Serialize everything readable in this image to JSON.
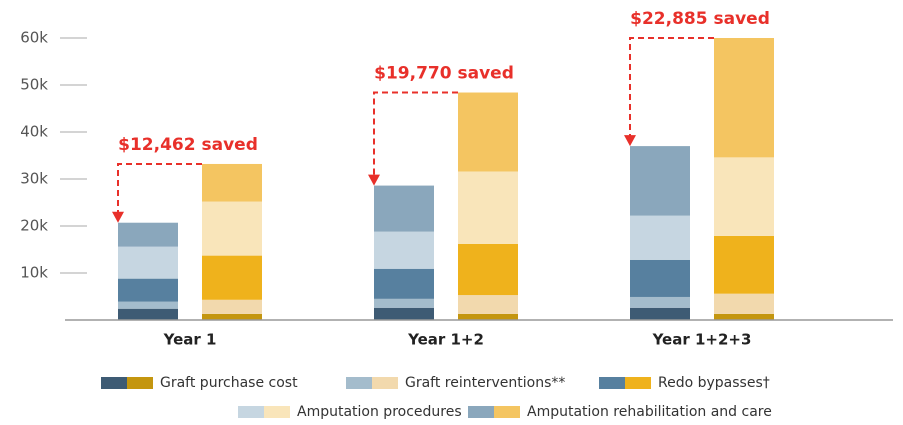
{
  "chart_data": {
    "type": "paired-stacked-bar",
    "categories": [
      "Year 1",
      "Year 1+2",
      "Year 1+2+3"
    ],
    "series": [
      {
        "name": "Graft purchase cost",
        "color": [
          "#3e5b74",
          "#c4960f"
        ],
        "values": [
          [
            2400,
            1300
          ],
          [
            2600,
            1300
          ],
          [
            2600,
            1300
          ]
        ]
      },
      {
        "name": "Graft reinterventions**",
        "color": [
          "#a4bccc",
          "#f2d9ad"
        ],
        "values": [
          [
            1500,
            3000
          ],
          [
            1900,
            4000
          ],
          [
            2300,
            4300
          ]
        ]
      },
      {
        "name": "Redo bypasses†",
        "color": [
          "#57809f",
          "#efb21c"
        ],
        "values": [
          [
            4900,
            9400
          ],
          [
            6400,
            10900
          ],
          [
            7900,
            12300
          ]
        ]
      },
      {
        "name": "Amputation procedures",
        "color": [
          "#c6d6e1",
          "#f9e5ba"
        ],
        "values": [
          [
            6800,
            11500
          ],
          [
            7900,
            15400
          ],
          [
            9400,
            16700
          ]
        ]
      },
      {
        "name": "Amputation rehabilitation and care",
        "color": [
          "#8aa7bc",
          "#f4c561"
        ],
        "values": [
          [
            5100,
            8000
          ],
          [
            9800,
            16800
          ],
          [
            14800,
            25400
          ]
        ]
      }
    ],
    "annotations": [
      "$12,462 saved",
      "$19,770 saved",
      "$22,885 saved"
    ],
    "annotation_color": "#e8302a",
    "ylim": [
      0,
      60000
    ],
    "yticks": [
      {
        "value": 10000,
        "label": "10k"
      },
      {
        "value": 20000,
        "label": "20k"
      },
      {
        "value": 30000,
        "label": "30k"
      },
      {
        "value": 40000,
        "label": "40k"
      },
      {
        "value": 50000,
        "label": "50k"
      },
      {
        "value": 60000,
        "label": "60k"
      }
    ]
  }
}
